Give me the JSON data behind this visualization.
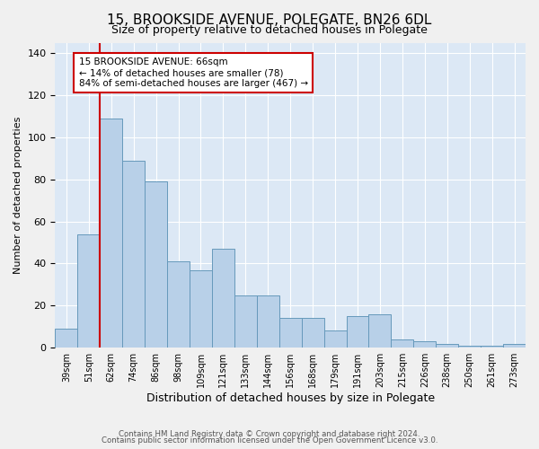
{
  "title": "15, BROOKSIDE AVENUE, POLEGATE, BN26 6DL",
  "subtitle": "Size of property relative to detached houses in Polegate",
  "xlabel": "Distribution of detached houses by size in Polegate",
  "ylabel": "Number of detached properties",
  "categories": [
    "39sqm",
    "51sqm",
    "62sqm",
    "74sqm",
    "86sqm",
    "98sqm",
    "109sqm",
    "121sqm",
    "133sqm",
    "144sqm",
    "156sqm",
    "168sqm",
    "179sqm",
    "191sqm",
    "203sqm",
    "215sqm",
    "226sqm",
    "238sqm",
    "250sqm",
    "261sqm",
    "273sqm"
  ],
  "values": [
    9,
    54,
    109,
    89,
    79,
    41,
    37,
    47,
    25,
    25,
    14,
    14,
    8,
    15,
    16,
    4,
    3,
    2,
    1,
    1,
    2
  ],
  "bar_color": "#b8d0e8",
  "bar_edge_color": "#6699bb",
  "vline_color": "#cc0000",
  "annotation_text": "15 BROOKSIDE AVENUE: 66sqm\n← 14% of detached houses are smaller (78)\n84% of semi-detached houses are larger (467) →",
  "annotation_box_facecolor": "#ffffff",
  "annotation_box_edgecolor": "#cc0000",
  "ylim": [
    0,
    145
  ],
  "yticks": [
    0,
    20,
    40,
    60,
    80,
    100,
    120,
    140
  ],
  "background_color": "#dce8f5",
  "grid_color": "#ffffff",
  "fig_facecolor": "#f0f0f0",
  "footer_line1": "Contains HM Land Registry data © Crown copyright and database right 2024.",
  "footer_line2": "Contains public sector information licensed under the Open Government Licence v3.0."
}
